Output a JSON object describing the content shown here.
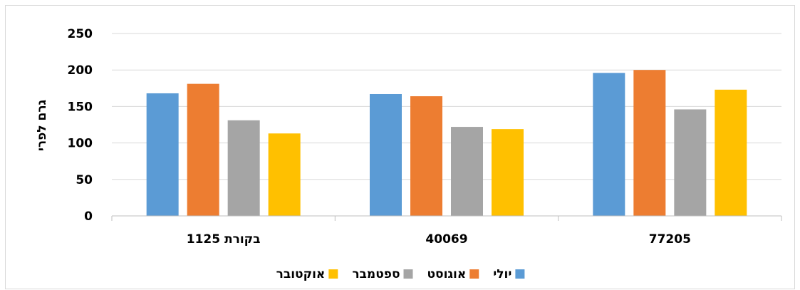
{
  "chart_data": {
    "type": "bar",
    "title": "",
    "ylabel": "גרם לפרי",
    "xlabel": "",
    "ylim": [
      0,
      250
    ],
    "yticks": [
      0,
      50,
      100,
      150,
      200,
      250
    ],
    "grid": true,
    "legend_position": "bottom",
    "categories": [
      "1125  בקורת",
      "40069",
      "77205"
    ],
    "series": [
      {
        "name": "יולי",
        "color": "#5b9bd5",
        "values": [
          168,
          167,
          196
        ]
      },
      {
        "name": "אוגוסט",
        "color": "#ed7d31",
        "values": [
          181,
          164,
          200
        ]
      },
      {
        "name": "ספטמבר",
        "color": "#a5a5a5",
        "values": [
          131,
          122,
          146
        ]
      },
      {
        "name": "אוקטובר",
        "color": "#ffc000",
        "values": [
          113,
          119,
          173
        ]
      }
    ]
  }
}
